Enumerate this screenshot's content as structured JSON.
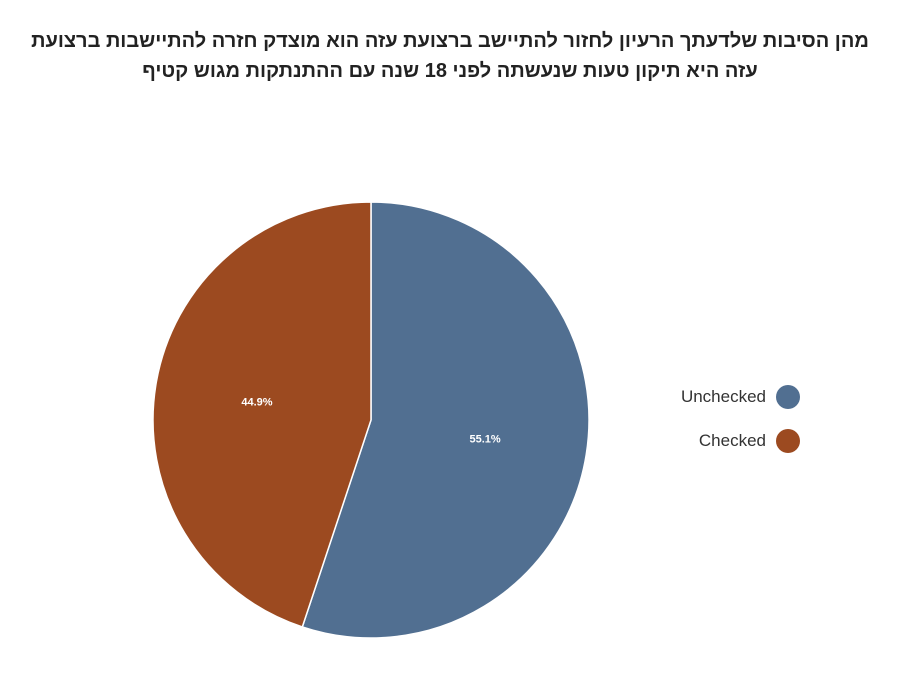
{
  "chart_data": {
    "type": "pie",
    "title": "מהן הסיבות שלדעתך הרעיון לחזור להתיישב ברצועת עזה הוא מוצדק חזרה להתיישבות ברצועת עזה היא תיקון טעות שנעשתה לפני 18 שנה עם ההתנתקות מגוש קטיף",
    "slices": [
      {
        "label": "Unchecked",
        "value": 55.1,
        "display": "55.1%",
        "color": "#516f91"
      },
      {
        "label": "Checked",
        "value": 44.9,
        "display": "44.9%",
        "color": "#9c4a20"
      }
    ],
    "legend_position": "right"
  }
}
